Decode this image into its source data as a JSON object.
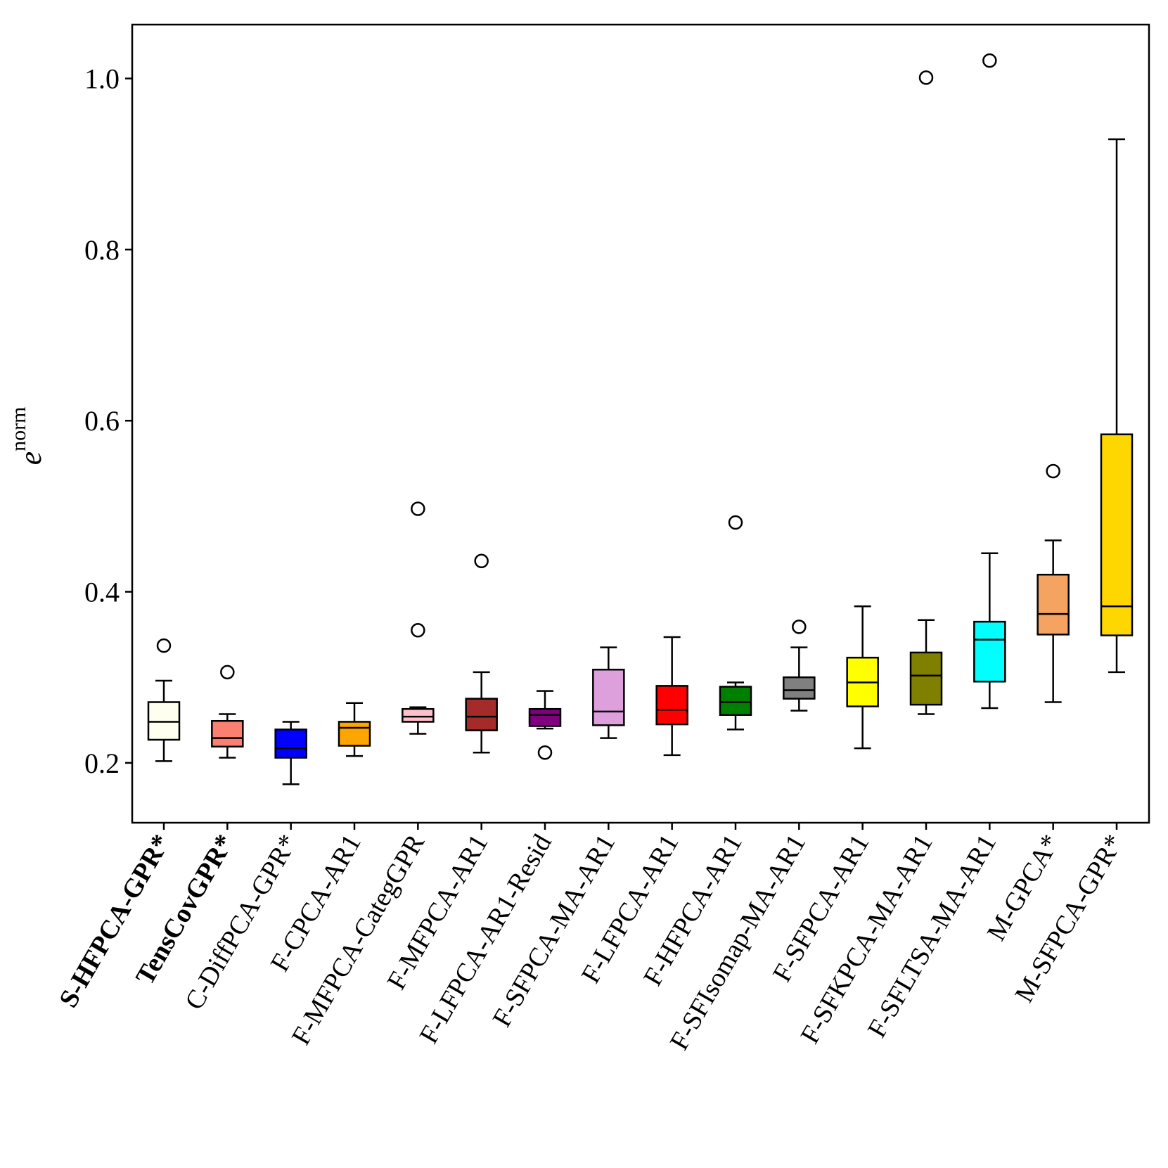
{
  "chart_data": {
    "type": "boxplot",
    "title": "",
    "xlabel": "",
    "ylabel": {
      "base": "e",
      "superscript": "norm"
    },
    "ylim": [
      0.13,
      1.063
    ],
    "yticks": [
      {
        "value": 0.2,
        "label": "0.2"
      },
      {
        "value": 0.4,
        "label": "0.4"
      },
      {
        "value": 0.6,
        "label": "0.6"
      },
      {
        "value": 0.8,
        "label": "0.8"
      },
      {
        "value": 1.0,
        "label": "1.0"
      }
    ],
    "grid": false,
    "series": [
      {
        "name": "S-HFPCA-GPR*",
        "bold": true,
        "color": "#FFFFF0",
        "whisker_low": 0.202,
        "q1": 0.227,
        "median": 0.248,
        "q3": 0.271,
        "whisker_high": 0.296,
        "outliers": [
          0.337
        ]
      },
      {
        "name": "TensCovGPR*",
        "bold": true,
        "color": "#FA8072",
        "whisker_low": 0.206,
        "q1": 0.219,
        "median": 0.229,
        "q3": 0.249,
        "whisker_high": 0.257,
        "outliers": [
          0.306
        ]
      },
      {
        "name": "C-DiffPCA-GPR*",
        "bold": false,
        "color": "#0000FF",
        "whisker_low": 0.175,
        "q1": 0.206,
        "median": 0.217,
        "q3": 0.239,
        "whisker_high": 0.248,
        "outliers": []
      },
      {
        "name": "F-CPCA-AR1",
        "bold": false,
        "color": "#FFA500",
        "whisker_low": 0.208,
        "q1": 0.22,
        "median": 0.241,
        "q3": 0.248,
        "whisker_high": 0.27,
        "outliers": []
      },
      {
        "name": "F-MFPCA-CategGPR",
        "bold": false,
        "color": "#FFC0CB",
        "whisker_low": 0.234,
        "q1": 0.248,
        "median": 0.254,
        "q3": 0.263,
        "whisker_high": 0.265,
        "outliers": [
          0.355,
          0.497
        ]
      },
      {
        "name": "F-MFPCA-AR1",
        "bold": false,
        "color": "#A52A2A",
        "whisker_low": 0.212,
        "q1": 0.238,
        "median": 0.254,
        "q3": 0.275,
        "whisker_high": 0.306,
        "outliers": [
          0.436
        ]
      },
      {
        "name": "F-LFPCA-AR1-Resid",
        "bold": false,
        "color": "#800080",
        "whisker_low": 0.24,
        "q1": 0.243,
        "median": 0.256,
        "q3": 0.263,
        "whisker_high": 0.284,
        "outliers": [
          0.212
        ]
      },
      {
        "name": "F-SFPCA-MA-AR1",
        "bold": false,
        "color": "#DDA0DD",
        "whisker_low": 0.229,
        "q1": 0.244,
        "median": 0.26,
        "q3": 0.309,
        "whisker_high": 0.335,
        "outliers": []
      },
      {
        "name": "F-LFPCA-AR1",
        "bold": false,
        "color": "#FF0000",
        "whisker_low": 0.209,
        "q1": 0.245,
        "median": 0.262,
        "q3": 0.29,
        "whisker_high": 0.347,
        "outliers": []
      },
      {
        "name": "F-HFPCA-AR1",
        "bold": false,
        "color": "#008000",
        "whisker_low": 0.239,
        "q1": 0.256,
        "median": 0.271,
        "q3": 0.289,
        "whisker_high": 0.294,
        "outliers": [
          0.481
        ]
      },
      {
        "name": "F-SFIsomap-MA-AR1",
        "bold": false,
        "color": "#808080",
        "whisker_low": 0.261,
        "q1": 0.275,
        "median": 0.285,
        "q3": 0.3,
        "whisker_high": 0.335,
        "outliers": [
          0.359
        ]
      },
      {
        "name": "F-SFPCA-AR1",
        "bold": false,
        "color": "#FFFF00",
        "whisker_low": 0.217,
        "q1": 0.266,
        "median": 0.294,
        "q3": 0.323,
        "whisker_high": 0.383,
        "outliers": []
      },
      {
        "name": "F-SFKPCA-MA-AR1",
        "bold": false,
        "color": "#808000",
        "whisker_low": 0.257,
        "q1": 0.268,
        "median": 0.302,
        "q3": 0.329,
        "whisker_high": 0.367,
        "outliers": [
          1.001
        ]
      },
      {
        "name": "F-SFLTSA-MA-AR1",
        "bold": false,
        "color": "#00FFFF",
        "whisker_low": 0.264,
        "q1": 0.295,
        "median": 0.344,
        "q3": 0.365,
        "whisker_high": 0.445,
        "outliers": [
          1.021
        ]
      },
      {
        "name": "M-GPCA*",
        "bold": false,
        "color": "#F4A460",
        "whisker_low": 0.271,
        "q1": 0.35,
        "median": 0.374,
        "q3": 0.42,
        "whisker_high": 0.46,
        "outliers": [
          0.541
        ]
      },
      {
        "name": "M-SFPCA-GPR*",
        "bold": false,
        "color": "#FFD700",
        "whisker_low": 0.306,
        "q1": 0.349,
        "median": 0.383,
        "q3": 0.584,
        "whisker_high": 0.929,
        "outliers": []
      }
    ]
  }
}
